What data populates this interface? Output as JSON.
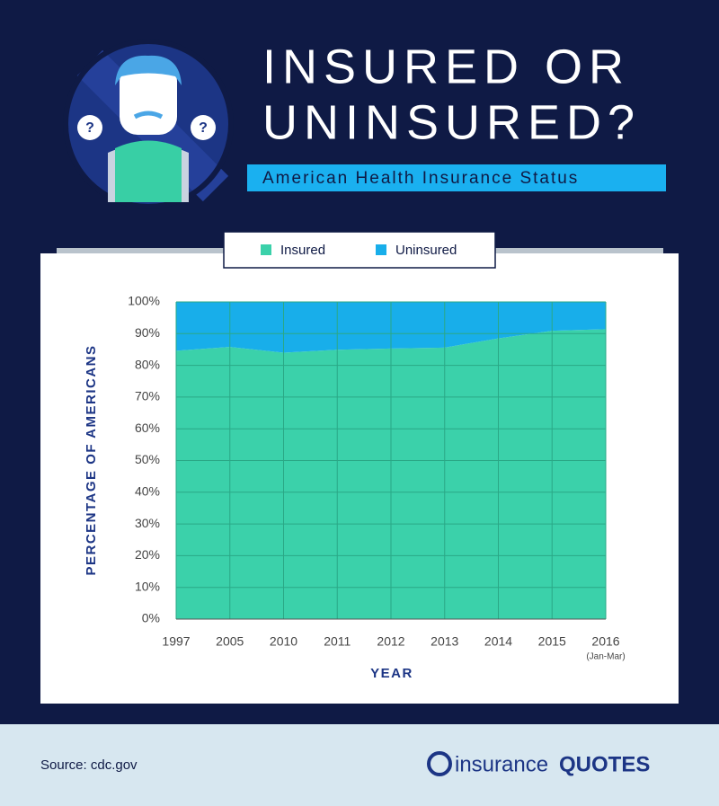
{
  "title": [
    "INSURED OR",
    "UNINSURED?"
  ],
  "subtitle": "American Health Insurance Status",
  "icon_marks": [
    "?",
    "?"
  ],
  "source": "Source: cdc.gov",
  "logo": {
    "part1": "insurance",
    "part2": "QUOTES"
  },
  "chart_data": {
    "type": "stacked_area",
    "x_label": "YEAR",
    "y_label": "PERCENTAGE OF AMERICANS",
    "categories": [
      "1997",
      "2005",
      "2010",
      "2011",
      "2012",
      "2013",
      "2014",
      "2015",
      "2016"
    ],
    "category_notes": [
      null,
      null,
      null,
      null,
      null,
      null,
      null,
      null,
      "(Jan-Mar)"
    ],
    "series": [
      {
        "name": "Insured",
        "color": "#3bd1aa",
        "values": [
          84.6,
          85.8,
          84.0,
          84.9,
          85.3,
          85.6,
          88.5,
          90.9,
          91.4
        ]
      },
      {
        "name": "Uninsured",
        "color": "#18aeea",
        "values": [
          15.4,
          14.2,
          16.0,
          15.1,
          14.7,
          14.4,
          11.5,
          9.1,
          8.6
        ]
      }
    ],
    "ylim": [
      0,
      100
    ],
    "yticks": [
      {
        "value": 0,
        "label": "0%"
      },
      {
        "value": 10,
        "label": "10%"
      },
      {
        "value": 20,
        "label": "20%"
      },
      {
        "value": 30,
        "label": "30%"
      },
      {
        "value": 40,
        "label": "40%"
      },
      {
        "value": 50,
        "label": "50%"
      },
      {
        "value": 60,
        "label": "60%"
      },
      {
        "value": 70,
        "label": "70%"
      },
      {
        "value": 80,
        "label": "80%"
      },
      {
        "value": 90,
        "label": "90%"
      },
      {
        "value": 100,
        "label": "100%"
      }
    ],
    "grid": true,
    "grid_color": "#2aa886"
  }
}
